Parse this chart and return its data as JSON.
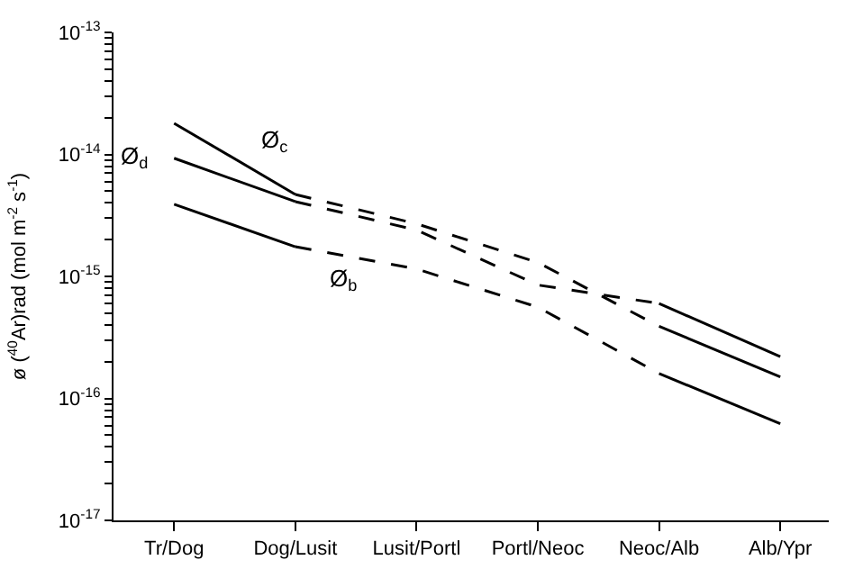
{
  "chart_data": {
    "type": "line",
    "ylabel": "ø ($^{40}$Ar)rad (mol m$^{-2}$ s$^{-1}$)",
    "categories": [
      "Tr/Dog",
      "Dog/Lusit",
      "Lusit/Portl",
      "Portl/Neoc",
      "Neoc/Alb",
      "Alb/Ypr"
    ],
    "log": true,
    "ylim": [
      1e-17,
      1e-13
    ],
    "yticks": [
      {
        "value": 1e-17,
        "label": "10$^{-17}$"
      },
      {
        "value": 2e-17,
        "label": null
      },
      {
        "value": 3e-17,
        "label": null
      },
      {
        "value": 4e-17,
        "label": null
      },
      {
        "value": 5e-17,
        "label": null
      },
      {
        "value": 6e-17,
        "label": null
      },
      {
        "value": 7e-17,
        "label": null
      },
      {
        "value": 8e-17,
        "label": null
      },
      {
        "value": 9e-17,
        "label": null
      },
      {
        "value": 1e-16,
        "label": "10$^{-16}$"
      },
      {
        "value": 2e-16,
        "label": null
      },
      {
        "value": 3e-16,
        "label": null
      },
      {
        "value": 4e-16,
        "label": null
      },
      {
        "value": 5e-16,
        "label": null
      },
      {
        "value": 6e-16,
        "label": null
      },
      {
        "value": 7e-16,
        "label": null
      },
      {
        "value": 8e-16,
        "label": null
      },
      {
        "value": 9e-16,
        "label": null
      },
      {
        "value": 1e-15,
        "label": "10$^{-15}$"
      },
      {
        "value": 2e-15,
        "label": null
      },
      {
        "value": 3e-15,
        "label": null
      },
      {
        "value": 4e-15,
        "label": null
      },
      {
        "value": 5e-15,
        "label": null
      },
      {
        "value": 6e-15,
        "label": null
      },
      {
        "value": 7e-15,
        "label": null
      },
      {
        "value": 8e-15,
        "label": null
      },
      {
        "value": 9e-15,
        "label": null
      },
      {
        "value": 1e-14,
        "label": "10$^{-14}$"
      },
      {
        "value": 2e-14,
        "label": null
      },
      {
        "value": 3e-14,
        "label": null
      },
      {
        "value": 4e-14,
        "label": null
      },
      {
        "value": 5e-14,
        "label": null
      },
      {
        "value": 6e-14,
        "label": null
      },
      {
        "value": 7e-14,
        "label": null
      },
      {
        "value": 8e-14,
        "label": null
      },
      {
        "value": 9e-14,
        "label": null
      },
      {
        "value": 1e-13,
        "label": "10$^{-13}$"
      }
    ],
    "legend": false,
    "marker": "none",
    "series": [
      {
        "name": "Ø$_{c}$",
        "color": "#000000",
        "line_style": "solid",
        "values": [
          1.8e-14,
          4.7e-15,
          null,
          null,
          null,
          null
        ]
      },
      {
        "color": "#000000",
        "line_style": "dashed",
        "values": [
          null,
          4.7e-15,
          2.7e-15,
          1.3e-15,
          3.9e-16,
          null
        ]
      },
      {
        "color": "#000000",
        "line_style": "solid",
        "values": [
          null,
          null,
          null,
          null,
          3.9e-16,
          1.5e-16
        ]
      },
      {
        "name": "Ø$_{d}$",
        "color": "#000000",
        "line_style": "solid",
        "values": [
          9.3e-15,
          4.1e-15,
          null,
          null,
          null,
          null
        ]
      },
      {
        "color": "#000000",
        "line_style": "dashed",
        "values": [
          null,
          4.1e-15,
          2.4e-15,
          8.5e-16,
          6e-16,
          null
        ]
      },
      {
        "color": "#000000",
        "line_style": "solid",
        "values": [
          null,
          null,
          null,
          null,
          6e-16,
          2.2e-16
        ]
      },
      {
        "color": "#000000",
        "line_style": "solid",
        "values": [
          3.9e-15,
          1.75e-15,
          null,
          null,
          null,
          null
        ]
      },
      {
        "name": "Ø$_{b}$",
        "color": "#000000",
        "line_style": "dashed",
        "values": [
          null,
          1.75e-15,
          1.15e-15,
          5.6e-16,
          1.6e-16,
          null
        ]
      },
      {
        "color": "#000000",
        "line_style": "solid",
        "values": [
          null,
          null,
          null,
          null,
          1.6e-16,
          6.2e-17
        ]
      }
    ]
  }
}
